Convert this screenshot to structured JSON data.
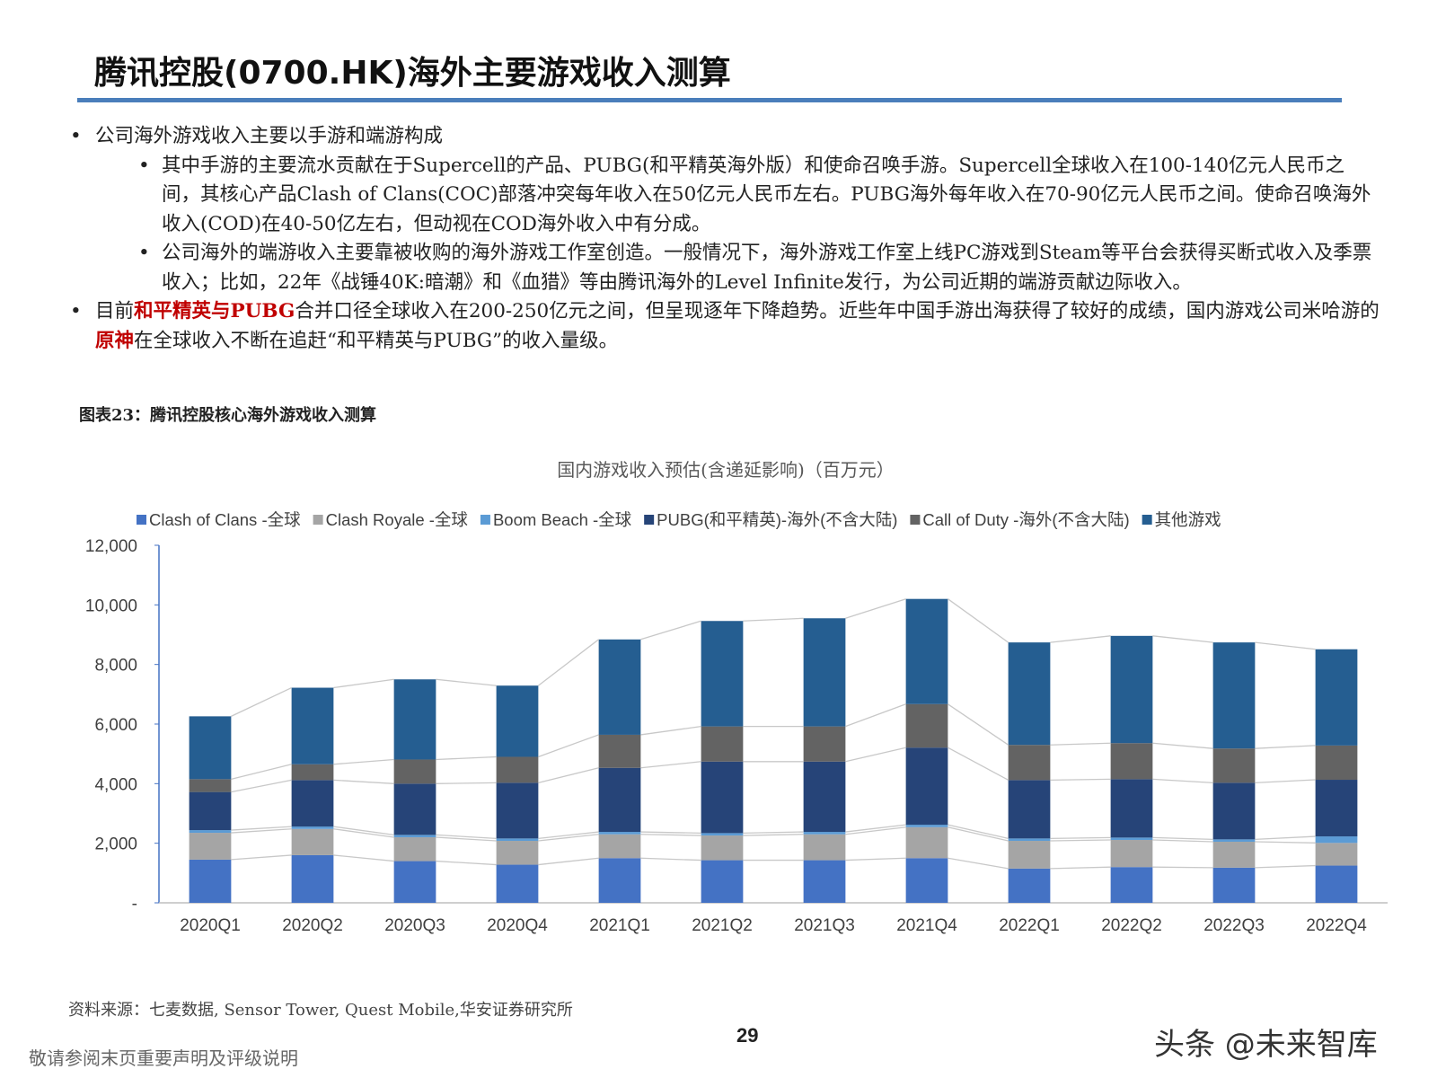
{
  "header": {
    "title": "腾讯控股(0700.HK)海外主要游戏收入测算"
  },
  "bullets": [
    {
      "level": 1,
      "runs": [
        {
          "text": "公司海外游戏收入主要以手游和端游构成"
        }
      ]
    },
    {
      "level": 2,
      "runs": [
        {
          "text": "其中手游的主要流水贡献在于Supercell的产品、PUBG(和平精英海外版）和使命召唤手游。Supercell全球收入在100-140亿元人民币之间，其核心产品Clash of Clans(COC)部落冲突每年收入在50亿元人民币左右。PUBG海外每年收入在70-90亿元人民币之间。使命召唤海外收入(COD)在40-50亿左右，但动视在COD海外收入中有分成。"
        }
      ]
    },
    {
      "level": 2,
      "runs": [
        {
          "text": "公司海外的端游收入主要靠被收购的海外游戏工作室创造。一般情况下，海外游戏工作室上线PC游戏到Steam等平台会获得买断式收入及季票收入；比如，22年《战锤40K:暗潮》和《血猎》等由腾讯海外的Level Infinite发行，为公司近期的端游贡献边际收入。"
        }
      ]
    },
    {
      "level": 1,
      "runs": [
        {
          "text": "目前"
        },
        {
          "text": "和平精英与PUBG",
          "color": "#c00000"
        },
        {
          "text": "合并口径全球收入在200-250亿元之间，但呈现逐年下降趋势。近些年中国手游出海获得了较好的成绩，国内游戏公司米哈游的"
        },
        {
          "text": "原神",
          "color": "#c00000"
        },
        {
          "text": "在全球收入不断在追赶“和平精英与PUBG”的收入量级。"
        }
      ]
    }
  ],
  "figure_caption": "图表23：腾讯控股核心海外游戏收入测算",
  "chart_data": {
    "type": "bar",
    "stacked": true,
    "title": "国内游戏收入预估(含递延影响)（百万元）",
    "categories": [
      "2020Q1",
      "2020Q2",
      "2020Q3",
      "2020Q4",
      "2021Q1",
      "2021Q2",
      "2021Q3",
      "2021Q4",
      "2022Q1",
      "2022Q2",
      "2022Q3",
      "2022Q4"
    ],
    "series": [
      {
        "name": "Clash of Clans -全球",
        "color": "#4472c4",
        "values": [
          1450,
          1600,
          1400,
          1280,
          1500,
          1430,
          1430,
          1500,
          1150,
          1200,
          1180,
          1250
        ]
      },
      {
        "name": "Clash Royale -全球",
        "color": "#a5a5a5",
        "values": [
          900,
          880,
          800,
          800,
          800,
          830,
          870,
          1040,
          930,
          910,
          870,
          760
        ]
      },
      {
        "name": "Boom Beach -全球",
        "color": "#5b9bd5",
        "values": [
          90,
          80,
          80,
          80,
          80,
          80,
          80,
          80,
          80,
          80,
          80,
          220
        ]
      },
      {
        "name": "PUBG(和平精英)-海外(不含大陆)",
        "color": "#264478",
        "values": [
          1280,
          1560,
          1720,
          1870,
          2150,
          2400,
          2360,
          2590,
          1960,
          1960,
          1900,
          1900
        ]
      },
      {
        "name": "Call of Duty -海外(不含大陆)",
        "color": "#636363",
        "values": [
          430,
          530,
          810,
          870,
          1110,
          1180,
          1180,
          1460,
          1180,
          1210,
          1150,
          1150
        ]
      },
      {
        "name": "其他游戏",
        "color": "#255e91",
        "values": [
          2110,
          2570,
          2690,
          2390,
          3200,
          3540,
          3630,
          3530,
          3440,
          3600,
          3560,
          3230
        ]
      }
    ],
    "ylim": [
      0,
      12000
    ],
    "yticks": [
      {
        "value": 0,
        "label": "-"
      },
      {
        "value": 2000,
        "label": "2,000"
      },
      {
        "value": 4000,
        "label": "4,000"
      },
      {
        "value": 6000,
        "label": "6,000"
      },
      {
        "value": 8000,
        "label": "8,000"
      },
      {
        "value": 10000,
        "label": "10,000"
      },
      {
        "value": 12000,
        "label": "12,000"
      }
    ],
    "legend": "top",
    "connector_lines": true
  },
  "source": "资料来源：七麦数据, Sensor Tower, Quest Mobile,华安证券研究所",
  "page_number": "29",
  "disclaimer": "敬请参阅末页重要声明及评级说明",
  "watermark": "头条 @未来智库"
}
